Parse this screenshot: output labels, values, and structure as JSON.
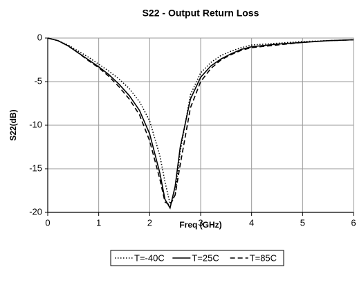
{
  "chart_data": {
    "type": "line",
    "title": "S22 - Output Return Loss",
    "x_label": "Freq (GHz)",
    "y_label": "S22(dB)",
    "x": [
      0,
      0.2,
      0.4,
      0.6,
      0.8,
      1.0,
      1.2,
      1.4,
      1.6,
      1.8,
      2.0,
      2.2,
      2.3,
      2.4,
      2.5,
      2.6,
      2.8,
      3.0,
      3.2,
      3.4,
      3.6,
      3.8,
      4.0,
      4.5,
      5.0,
      5.5,
      6.0
    ],
    "series": [
      {
        "name": "T=-40C",
        "color": "#000000",
        "line_style": "dotted",
        "values": [
          0,
          -0.3,
          -0.8,
          -1.5,
          -2.2,
          -3.0,
          -3.8,
          -4.7,
          -5.8,
          -7.3,
          -9.5,
          -13.5,
          -16.5,
          -19.0,
          -18.0,
          -13.0,
          -6.5,
          -4.0,
          -2.8,
          -2.0,
          -1.5,
          -1.1,
          -0.8,
          -0.6,
          -0.4,
          -0.3,
          -0.2
        ]
      },
      {
        "name": "T=25C",
        "color": "#000000",
        "line_style": "solid",
        "values": [
          0,
          -0.3,
          -0.9,
          -1.7,
          -2.5,
          -3.3,
          -4.2,
          -5.3,
          -6.6,
          -8.3,
          -11.0,
          -15.5,
          -18.5,
          -19.5,
          -17.0,
          -12.5,
          -7.0,
          -4.5,
          -3.2,
          -2.4,
          -1.8,
          -1.3,
          -1.0,
          -0.7,
          -0.5,
          -0.3,
          -0.2
        ]
      },
      {
        "name": "T=85C",
        "color": "#000000",
        "line_style": "dashed",
        "values": [
          0,
          -0.3,
          -0.9,
          -1.7,
          -2.6,
          -3.4,
          -4.4,
          -5.6,
          -7.0,
          -8.8,
          -11.8,
          -16.2,
          -18.8,
          -19.2,
          -18.0,
          -14.5,
          -8.0,
          -5.0,
          -3.5,
          -2.5,
          -1.9,
          -1.4,
          -1.1,
          -0.8,
          -0.5,
          -0.3,
          -0.2
        ]
      }
    ],
    "xlim": [
      0,
      6
    ],
    "xticks": [
      0,
      1,
      2,
      3,
      4,
      5,
      6
    ],
    "ylim": [
      -20,
      0
    ],
    "yticks": [
      0,
      -5,
      -10,
      -15,
      -20
    ],
    "grid": true,
    "legend": "bottom"
  }
}
